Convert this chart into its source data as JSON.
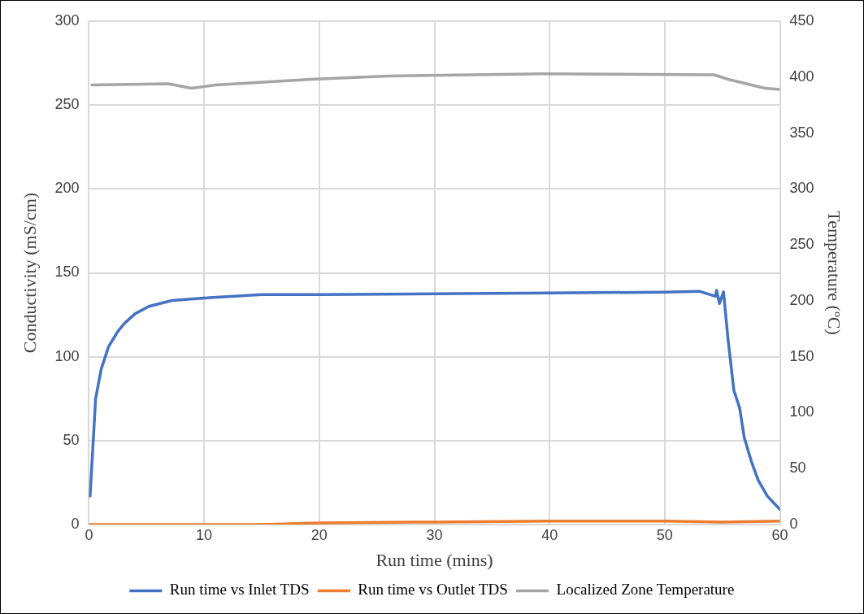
{
  "chart_data": {
    "type": "line",
    "xlabel": "Run time (mins)",
    "ylabel": "Conductivity (mS/cm)",
    "y2label": "Temperature (ºC)",
    "xlim": [
      0,
      60
    ],
    "xticks": [
      0,
      10,
      20,
      30,
      40,
      50,
      60
    ],
    "ylim": [
      0,
      300
    ],
    "yticks": [
      0,
      50,
      100,
      150,
      200,
      250,
      300
    ],
    "y2lim": [
      0,
      450
    ],
    "y2ticks": [
      0,
      50,
      100,
      150,
      200,
      250,
      300,
      350,
      400,
      450
    ],
    "grid": true,
    "legend": "bottom",
    "marker": "none",
    "line_style": "solid",
    "series": [
      {
        "name": "Run time vs Inlet TDS",
        "color": "#4472c4",
        "x": [
          0.1,
          0.58,
          1.06,
          1.7,
          2.5,
          3.1,
          4.0,
          5.2,
          7.2,
          10,
          15,
          20,
          30,
          40,
          50,
          53,
          54.4,
          54.5,
          54.75,
          55.1,
          55.5,
          56,
          56.5,
          56.9,
          57.5,
          58.1,
          58.9,
          59.5,
          60
        ],
        "values": [
          17,
          75,
          92.5,
          106,
          115,
          120,
          125.6,
          130,
          133.5,
          135,
          137,
          137,
          137.5,
          138,
          138.5,
          139,
          136,
          139.6,
          131.7,
          138.7,
          110,
          80,
          69.5,
          52,
          38,
          26.6,
          17,
          12.6,
          9
        ]
      },
      {
        "name": "Run time vs Outlet TDS",
        "color": "#ed7d31",
        "x": [
          0,
          15,
          20,
          30,
          40,
          50,
          55,
          60
        ],
        "values": [
          0,
          0,
          1,
          1.5,
          2,
          2,
          1.5,
          2
        ]
      },
      {
        "name": "Localized Zone Temperature",
        "color": "#a5a5a5",
        "axis": "y2",
        "x": [
          0.26,
          6.9,
          8.9,
          11,
          19.3,
          26,
          39.3,
          54.3,
          55.5,
          58.7,
          60
        ],
        "values": [
          393,
          394,
          390,
          393,
          398,
          401,
          403,
          402,
          398,
          390,
          389
        ]
      }
    ]
  }
}
